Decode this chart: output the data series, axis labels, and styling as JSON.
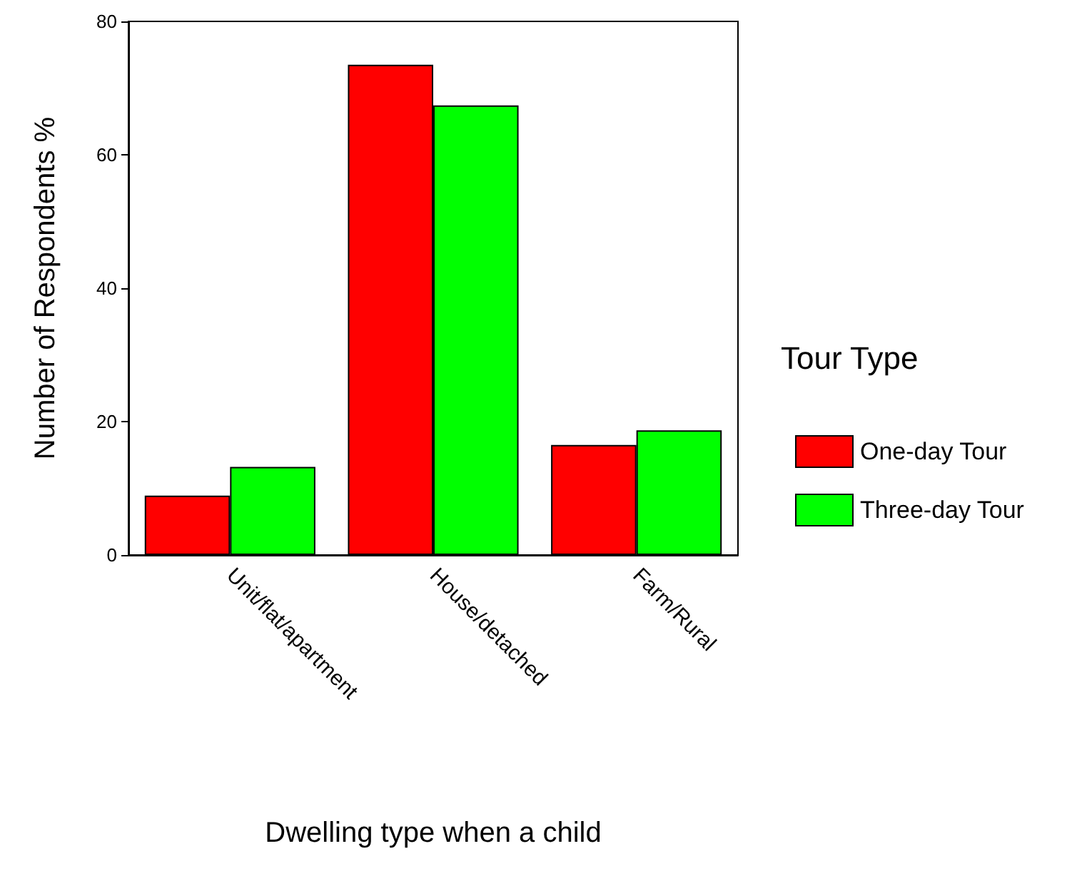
{
  "chart_data": {
    "type": "bar",
    "xlabel": "Dwelling type when a child",
    "ylabel": "Number of Respondents %",
    "legend_title": "Tour Type",
    "categories": [
      "Unit/flat/apartment",
      "House/detached",
      "Farm/Rural"
    ],
    "series": [
      {
        "name": "One-day Tour",
        "color": "#ff0000",
        "values": [
          8.9,
          73.5,
          16.5
        ]
      },
      {
        "name": "Three-day Tour",
        "color": "#00ff00",
        "values": [
          13.2,
          67.4,
          18.7
        ]
      }
    ],
    "ylim": [
      0,
      80
    ],
    "yticks": [
      0,
      20,
      40,
      60,
      80
    ],
    "grid": false,
    "legend": "right"
  }
}
